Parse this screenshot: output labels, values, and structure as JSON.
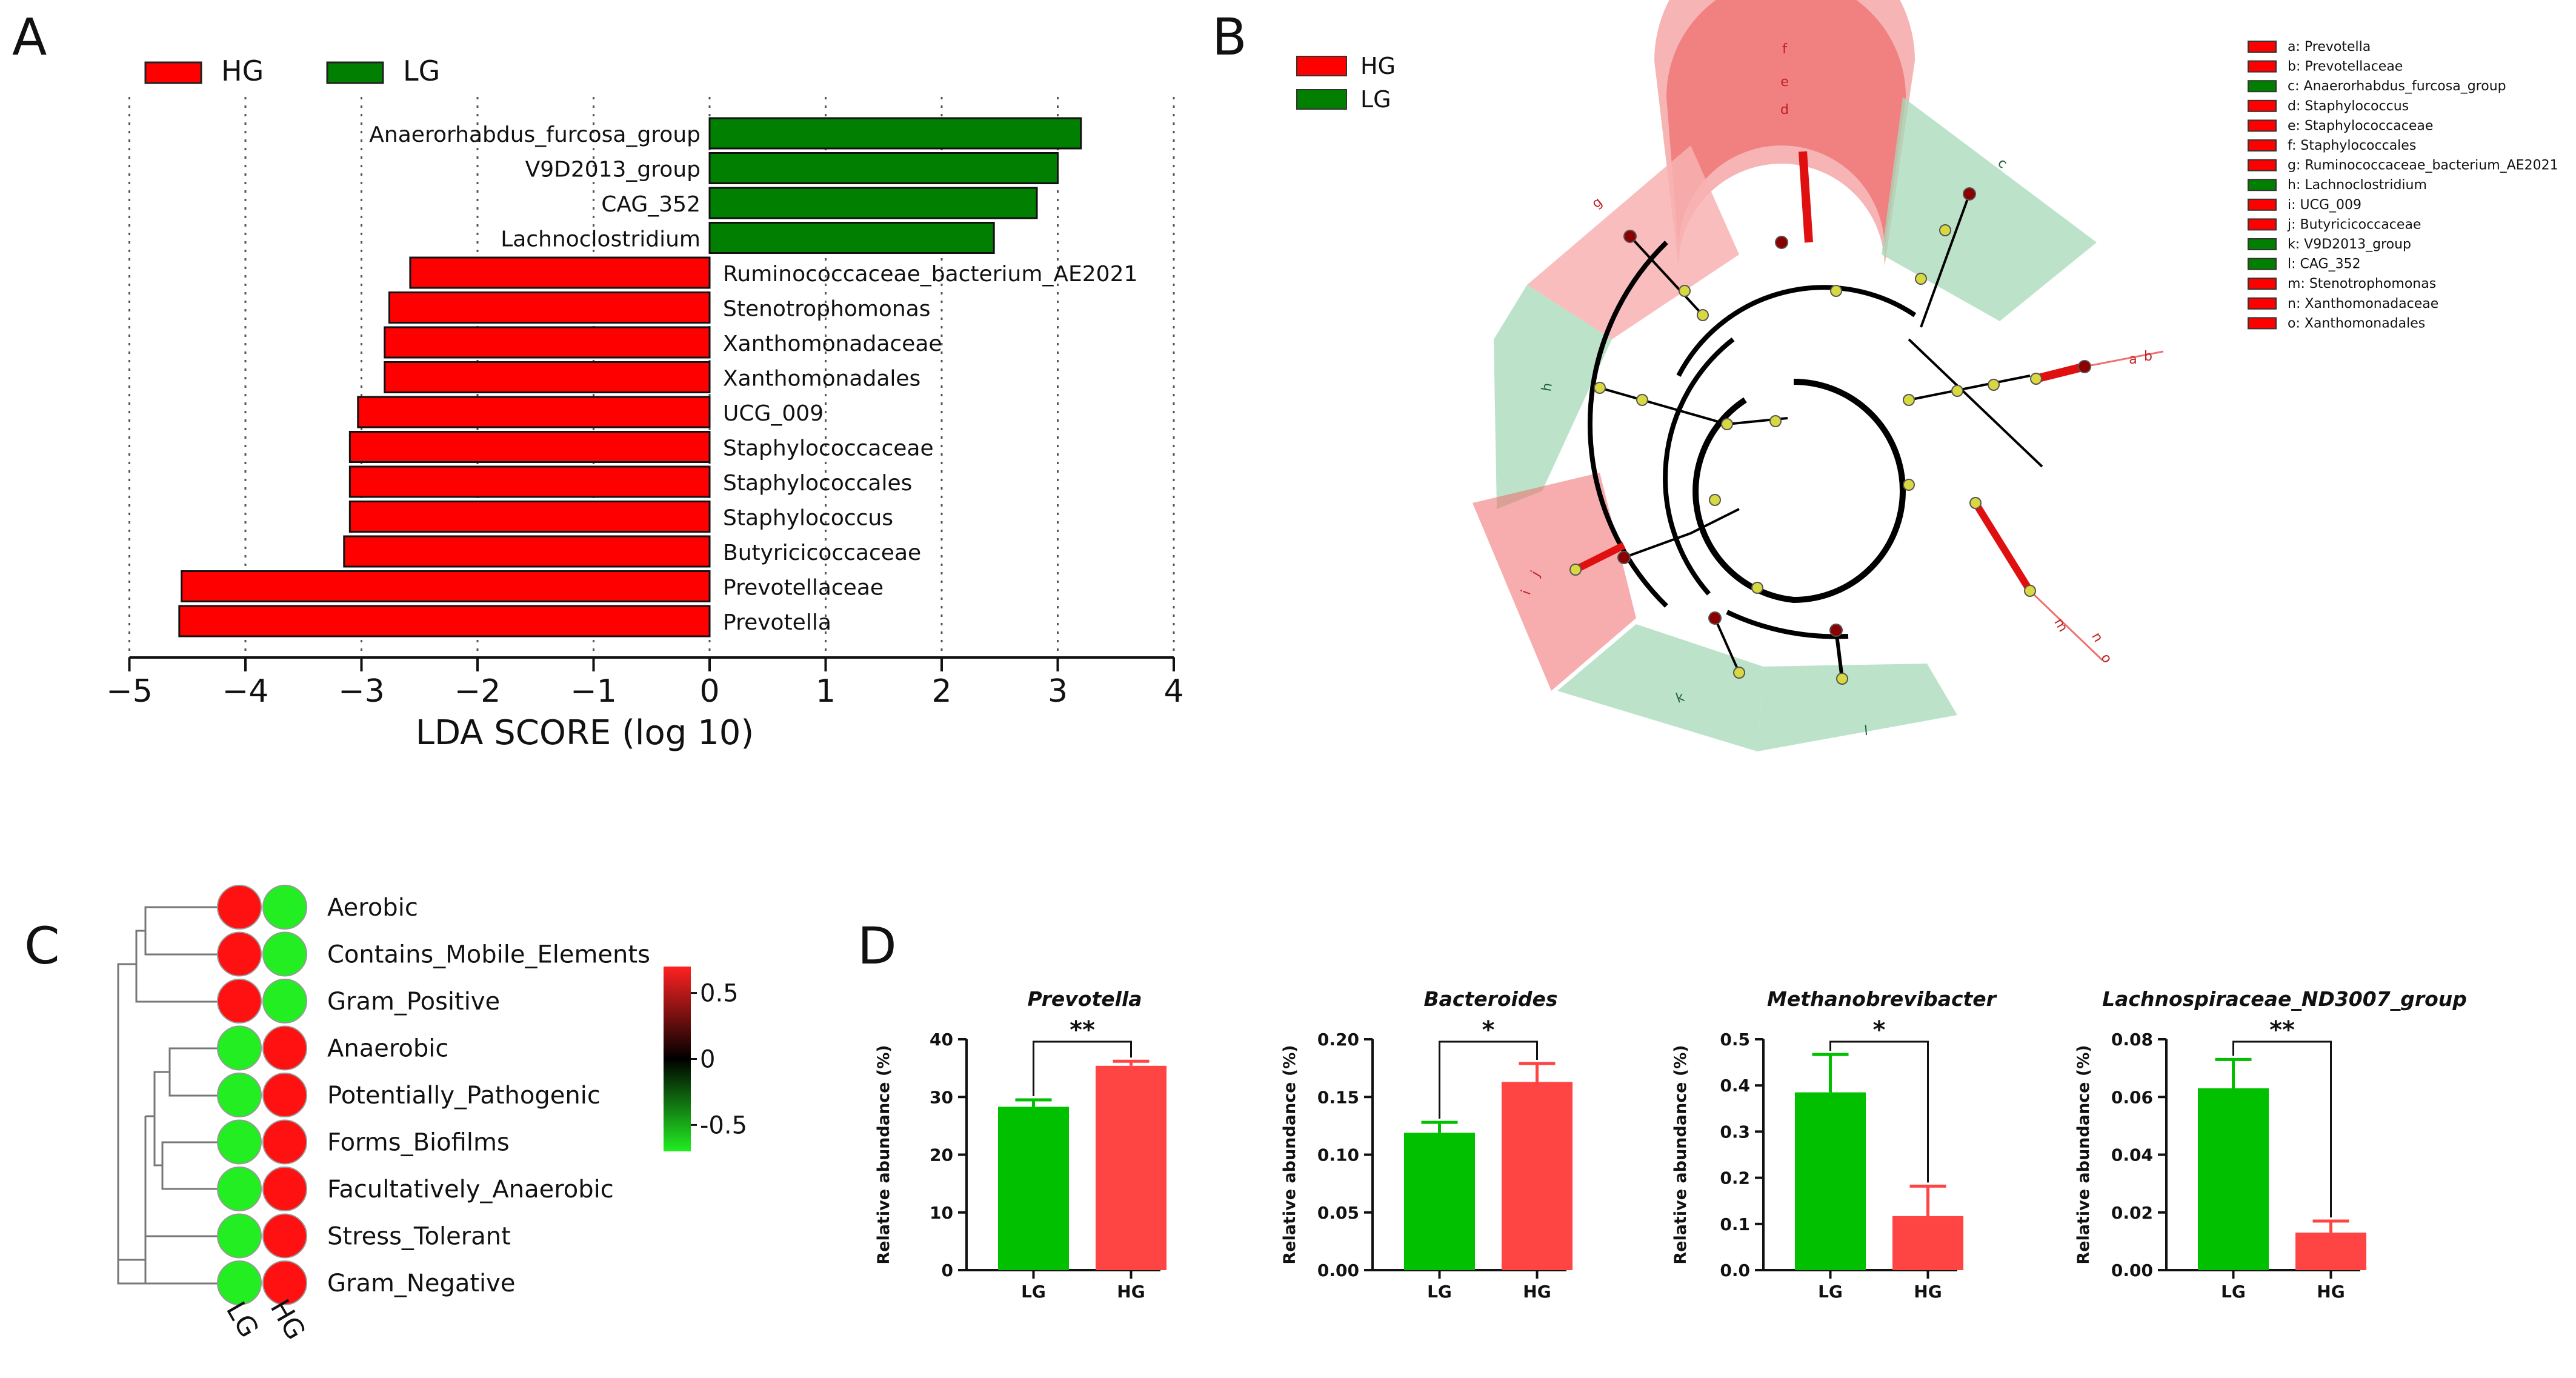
{
  "panels": {
    "A": "A",
    "B": "B",
    "C": "C",
    "D": "D"
  },
  "colors": {
    "hg": "#ff0000",
    "lg": "#007f00",
    "hg_light": "#f06a6a",
    "lg_light": "#a6d9b8",
    "bar_green": "#00c000",
    "bar_red": "#ff4444",
    "heat_red": "#ff1111",
    "heat_green": "#22ee22"
  },
  "chart_data": [
    {
      "id": "A",
      "type": "bar",
      "orientation": "horizontal",
      "legend": [
        {
          "name": "HG",
          "color": "#ff0000"
        },
        {
          "name": "LG",
          "color": "#007f00"
        }
      ],
      "xlabel": "LDA SCORE (log 10)",
      "xlim": [
        -5,
        4
      ],
      "xticks": [
        -5,
        -4,
        -3,
        -2,
        -1,
        0,
        1,
        2,
        3,
        4
      ],
      "grid": true,
      "bars": [
        {
          "label": "Anaerorhabdus_furcosa_group",
          "value": 3.2,
          "group": "LG"
        },
        {
          "label": "V9D2013_group",
          "value": 3.0,
          "group": "LG"
        },
        {
          "label": "CAG_352",
          "value": 2.82,
          "group": "LG"
        },
        {
          "label": "Lachnoclostridium",
          "value": 2.45,
          "group": "LG"
        },
        {
          "label": "Ruminococcaceae_bacterium_AE2021",
          "value": -2.58,
          "group": "HG"
        },
        {
          "label": "Stenotrophomonas",
          "value": -2.76,
          "group": "HG"
        },
        {
          "label": "Xanthomonadaceae",
          "value": -2.8,
          "group": "HG"
        },
        {
          "label": "Xanthomonadales",
          "value": -2.8,
          "group": "HG"
        },
        {
          "label": "UCG_009",
          "value": -3.03,
          "group": "HG"
        },
        {
          "label": "Staphylococcaceae",
          "value": -3.1,
          "group": "HG"
        },
        {
          "label": "Staphylococcales",
          "value": -3.1,
          "group": "HG"
        },
        {
          "label": "Staphylococcus",
          "value": -3.1,
          "group": "HG"
        },
        {
          "label": "Butyricicoccaceae",
          "value": -3.15,
          "group": "HG"
        },
        {
          "label": "Prevotellaceae",
          "value": -4.55,
          "group": "HG"
        },
        {
          "label": "Prevotella",
          "value": -4.57,
          "group": "HG"
        }
      ]
    },
    {
      "id": "B",
      "type": "cladogram",
      "legend": [
        {
          "name": "HG",
          "color": "#ff0000"
        },
        {
          "name": "LG",
          "color": "#007f00"
        }
      ],
      "clade_legend": [
        {
          "key": "a",
          "name": "Prevotella",
          "group": "HG"
        },
        {
          "key": "b",
          "name": "Prevotellaceae",
          "group": "HG"
        },
        {
          "key": "c",
          "name": "Anaerorhabdus_furcosa_group",
          "group": "LG"
        },
        {
          "key": "d",
          "name": "Staphylococcus",
          "group": "HG"
        },
        {
          "key": "e",
          "name": "Staphylococcaceae",
          "group": "HG"
        },
        {
          "key": "f",
          "name": "Staphylococcales",
          "group": "HG"
        },
        {
          "key": "g",
          "name": "Ruminococcaceae_bacterium_AE2021",
          "group": "HG"
        },
        {
          "key": "h",
          "name": "Lachnoclostridium",
          "group": "LG"
        },
        {
          "key": "i",
          "name": "UCG_009",
          "group": "HG"
        },
        {
          "key": "j",
          "name": "Butyricicoccaceae",
          "group": "HG"
        },
        {
          "key": "k",
          "name": "V9D2013_group",
          "group": "LG"
        },
        {
          "key": "l",
          "name": "CAG_352",
          "group": "LG"
        },
        {
          "key": "m",
          "name": "Stenotrophomonas",
          "group": "HG"
        },
        {
          "key": "n",
          "name": "Xanthomonadaceae",
          "group": "HG"
        },
        {
          "key": "o",
          "name": "Xanthomonadales",
          "group": "HG"
        }
      ],
      "sector_letters": [
        {
          "key": "f",
          "group": "HG"
        },
        {
          "key": "e",
          "group": "HG"
        },
        {
          "key": "d",
          "group": "HG"
        },
        {
          "key": "c",
          "group": "LG"
        },
        {
          "key": "g",
          "group": "HG"
        },
        {
          "key": "h",
          "group": "LG"
        },
        {
          "key": "j",
          "group": "HG"
        },
        {
          "key": "i",
          "group": "HG"
        },
        {
          "key": "k",
          "group": "LG"
        },
        {
          "key": "l",
          "group": "LG"
        },
        {
          "key": "a",
          "group": "HG"
        },
        {
          "key": "b",
          "group": "HG"
        },
        {
          "key": "m",
          "group": "HG"
        },
        {
          "key": "n",
          "group": "HG"
        },
        {
          "key": "o",
          "group": "HG"
        }
      ]
    },
    {
      "id": "C",
      "type": "heatmap",
      "columns": [
        "LG",
        "HG"
      ],
      "rows": [
        {
          "label": "Aerobic",
          "values": [
            0.6,
            -0.6
          ]
        },
        {
          "label": "Contains_Mobile_Elements",
          "values": [
            0.6,
            -0.6
          ]
        },
        {
          "label": "Gram_Positive",
          "values": [
            0.6,
            -0.6
          ]
        },
        {
          "label": "Anaerobic",
          "values": [
            -0.6,
            0.6
          ]
        },
        {
          "label": "Potentially_Pathogenic",
          "values": [
            -0.6,
            0.6
          ]
        },
        {
          "label": "Forms_Biofilms",
          "values": [
            -0.6,
            0.6
          ]
        },
        {
          "label": "Facultatively_Anaerobic",
          "values": [
            -0.6,
            0.6
          ]
        },
        {
          "label": "Stress_Tolerant",
          "values": [
            -0.6,
            0.6
          ]
        },
        {
          "label": "Gram_Negative",
          "values": [
            -0.6,
            0.6
          ]
        }
      ],
      "colorbar": {
        "range": [
          -0.7,
          0.7
        ],
        "tick_labels": [
          "0.5",
          "0",
          "-0.5"
        ],
        "tick_values": [
          0.5,
          0,
          -0.5
        ]
      }
    },
    {
      "id": "D",
      "type": "bar",
      "subplots": [
        {
          "title": "Prevotella",
          "ylabel": "Relative abundance (%)",
          "ylim": [
            0,
            40
          ],
          "yticks": [
            "0",
            "10",
            "20",
            "30",
            "40"
          ],
          "categories": [
            "LG",
            "HG"
          ],
          "values": [
            28.3,
            35.4
          ],
          "errors": [
            1.2,
            0.8
          ],
          "significance": "**"
        },
        {
          "title": "Bacteroides",
          "ylabel": "Relative abundance (%)",
          "ylim": [
            0,
            0.2
          ],
          "yticks": [
            "0.00",
            "0.05",
            "0.10",
            "0.15",
            "0.20"
          ],
          "categories": [
            "LG",
            "HG"
          ],
          "values": [
            0.119,
            0.163
          ],
          "errors": [
            0.009,
            0.016
          ],
          "significance": "*"
        },
        {
          "title": "Methanobrevibacter",
          "ylabel": "Relative abundance (%)",
          "ylim": [
            0,
            0.5
          ],
          "yticks": [
            "0.0",
            "0.1",
            "0.2",
            "0.3",
            "0.4",
            "0.5"
          ],
          "categories": [
            "LG",
            "HG"
          ],
          "values": [
            0.385,
            0.117
          ],
          "errors": [
            0.082,
            0.065
          ],
          "significance": "*"
        },
        {
          "title": "Lachnospiraceae_ND3007_group",
          "ylabel": "Relative abundance (%)",
          "ylim": [
            0,
            0.08
          ],
          "yticks": [
            "0.00",
            "0.02",
            "0.04",
            "0.06",
            "0.08"
          ],
          "categories": [
            "LG",
            "HG"
          ],
          "values": [
            0.063,
            0.013
          ],
          "errors": [
            0.01,
            0.004
          ],
          "significance": "**"
        }
      ]
    }
  ]
}
